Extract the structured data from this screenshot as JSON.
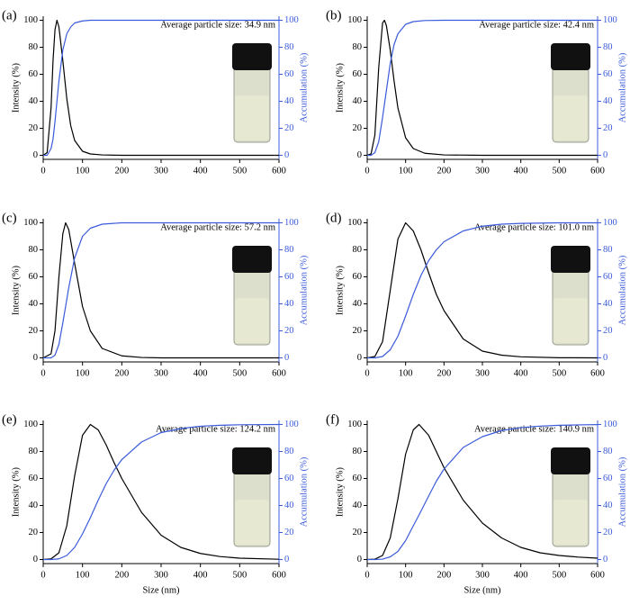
{
  "chart_data": [
    {
      "type": "line",
      "label": "(a)",
      "annotation": "Average particle size: 34.9 nm",
      "ylabel": "Intensity (%)",
      "y2label": "Accumulation (%)",
      "x": [
        0,
        10,
        20,
        25,
        30,
        35,
        40,
        50,
        60,
        70,
        80,
        100,
        120,
        150,
        200,
        300,
        400,
        500,
        600
      ],
      "series": [
        {
          "color": "#000000",
          "values": [
            0,
            2,
            35,
            70,
            93,
            100,
            95,
            70,
            42,
            22,
            11,
            3,
            1,
            0.3,
            0,
            0,
            0,
            0,
            0
          ]
        },
        {
          "color": "#3b5bdb",
          "axis": "y2",
          "values": [
            0,
            0,
            5,
            12,
            25,
            40,
            55,
            78,
            90,
            95,
            98,
            99.5,
            100,
            100,
            100,
            100,
            100,
            100,
            100
          ]
        }
      ],
      "xlim": [
        0,
        600
      ],
      "xticks": [
        0,
        100,
        200,
        300,
        400,
        500,
        600
      ],
      "ylim": [
        -3,
        103
      ],
      "yticks": [
        0,
        20,
        40,
        60,
        80,
        100
      ],
      "y2lim": [
        -3,
        103
      ],
      "y2ticks": [
        0,
        20,
        40,
        60,
        80,
        100
      ]
    },
    {
      "type": "line",
      "label": "(b)",
      "annotation": "Average particle size: 42.4 nm",
      "ylabel": "Intensity (%)",
      "y2label": "Accumulation (%)",
      "x": [
        0,
        10,
        20,
        30,
        40,
        45,
        50,
        60,
        70,
        80,
        100,
        120,
        150,
        200,
        300,
        400,
        500,
        600
      ],
      "series": [
        {
          "color": "#000000",
          "values": [
            0,
            1,
            15,
            65,
            98,
            100,
            96,
            78,
            55,
            35,
            13,
            5,
            1.5,
            0.3,
            0,
            0,
            0,
            0
          ]
        },
        {
          "color": "#3b5bdb",
          "axis": "y2",
          "values": [
            0,
            0,
            2,
            10,
            28,
            38,
            48,
            68,
            82,
            90,
            97,
            99,
            99.8,
            100,
            100,
            100,
            100,
            100
          ]
        }
      ],
      "xlim": [
        0,
        600
      ],
      "xticks": [
        0,
        100,
        200,
        300,
        400,
        500,
        600
      ],
      "ylim": [
        -3,
        103
      ],
      "yticks": [
        0,
        20,
        40,
        60,
        80,
        100
      ],
      "y2lim": [
        -3,
        103
      ],
      "y2ticks": [
        0,
        20,
        40,
        60,
        80,
        100
      ]
    },
    {
      "type": "line",
      "label": "(c)",
      "annotation": "Average particle size: 57.2 nm",
      "ylabel": "Intensity (%)",
      "y2label": "Accumulation (%)",
      "x": [
        0,
        20,
        30,
        40,
        50,
        57,
        65,
        80,
        100,
        120,
        150,
        200,
        250,
        300,
        400,
        500,
        600
      ],
      "series": [
        {
          "color": "#000000",
          "values": [
            0,
            3,
            20,
            60,
            92,
            100,
            95,
            70,
            38,
            20,
            7,
            1.5,
            0.3,
            0,
            0,
            0,
            0
          ]
        },
        {
          "color": "#3b5bdb",
          "axis": "y2",
          "values": [
            0,
            0,
            2,
            10,
            26,
            38,
            52,
            74,
            90,
            96,
            99,
            100,
            100,
            100,
            100,
            100,
            100
          ]
        }
      ],
      "xlim": [
        0,
        600
      ],
      "xticks": [
        0,
        100,
        200,
        300,
        400,
        500,
        600
      ],
      "ylim": [
        -3,
        103
      ],
      "yticks": [
        0,
        20,
        40,
        60,
        80,
        100
      ],
      "y2lim": [
        -3,
        103
      ],
      "y2ticks": [
        0,
        20,
        40,
        60,
        80,
        100
      ]
    },
    {
      "type": "line",
      "label": "(d)",
      "annotation": "Average particle size: 101.0 nm",
      "ylabel": "Intensity (%)",
      "y2label": "Accumulation (%)",
      "x": [
        0,
        20,
        40,
        60,
        80,
        100,
        120,
        140,
        160,
        180,
        200,
        250,
        300,
        350,
        400,
        500,
        600
      ],
      "series": [
        {
          "color": "#000000",
          "values": [
            0,
            1,
            12,
            50,
            88,
            100,
            94,
            80,
            63,
            47,
            35,
            14,
            5,
            2,
            0.8,
            0.1,
            0
          ]
        },
        {
          "color": "#3b5bdb",
          "axis": "y2",
          "values": [
            0,
            0,
            1,
            6,
            16,
            31,
            47,
            61,
            72,
            80,
            86,
            94,
            97.5,
            99,
            99.6,
            100,
            100
          ]
        }
      ],
      "xlim": [
        0,
        600
      ],
      "xticks": [
        0,
        100,
        200,
        300,
        400,
        500,
        600
      ],
      "ylim": [
        -3,
        103
      ],
      "yticks": [
        0,
        20,
        40,
        60,
        80,
        100
      ],
      "y2lim": [
        -3,
        103
      ],
      "y2ticks": [
        0,
        20,
        40,
        60,
        80,
        100
      ]
    },
    {
      "type": "line",
      "label": "(e)",
      "annotation": "Average particle size: 124.2 nm",
      "ylabel": "Intensity (%)",
      "y2label": "Accumulation (%)",
      "xlabel": "Size (nm)",
      "x": [
        0,
        20,
        40,
        60,
        80,
        100,
        120,
        140,
        160,
        180,
        200,
        250,
        300,
        350,
        400,
        450,
        500,
        600
      ],
      "series": [
        {
          "color": "#000000",
          "values": [
            0,
            0.5,
            5,
            25,
            62,
            92,
            100,
            96,
            85,
            72,
            60,
            35,
            18,
            9,
            4.5,
            2.2,
            1,
            0.2
          ]
        },
        {
          "color": "#3b5bdb",
          "axis": "y2",
          "values": [
            0,
            0,
            0.5,
            3,
            9,
            19,
            31,
            44,
            56,
            66,
            74,
            87,
            94,
            97,
            98.7,
            99.4,
            99.8,
            100
          ]
        }
      ],
      "xlim": [
        0,
        600
      ],
      "xticks": [
        0,
        100,
        200,
        300,
        400,
        500,
        600
      ],
      "ylim": [
        -3,
        103
      ],
      "yticks": [
        0,
        20,
        40,
        60,
        80,
        100
      ],
      "y2lim": [
        -3,
        103
      ],
      "y2ticks": [
        0,
        20,
        40,
        60,
        80,
        100
      ]
    },
    {
      "type": "line",
      "label": "(f)",
      "annotation": "Average particle size: 140.9 nm",
      "ylabel": "Intensity (%)",
      "y2label": "Accumulation (%)",
      "xlabel": "Size (nm)",
      "x": [
        0,
        20,
        40,
        60,
        80,
        100,
        120,
        135,
        160,
        180,
        200,
        250,
        300,
        350,
        400,
        450,
        500,
        550,
        600
      ],
      "series": [
        {
          "color": "#000000",
          "values": [
            0,
            0.3,
            3,
            16,
            45,
            78,
            96,
            100,
            92,
            80,
            68,
            44,
            27,
            16,
            9,
            5,
            3,
            1.8,
            1
          ]
        },
        {
          "color": "#3b5bdb",
          "axis": "y2",
          "values": [
            0,
            0,
            0.3,
            2,
            6,
            14,
            25,
            33,
            47,
            58,
            67,
            83,
            91,
            95.5,
            97.7,
            98.8,
            99.4,
            99.7,
            99.9
          ]
        }
      ],
      "xlim": [
        0,
        600
      ],
      "xticks": [
        0,
        100,
        200,
        300,
        400,
        500,
        600
      ],
      "ylim": [
        -3,
        103
      ],
      "yticks": [
        0,
        20,
        40,
        60,
        80,
        100
      ],
      "y2lim": [
        -3,
        103
      ],
      "y2ticks": [
        0,
        20,
        40,
        60,
        80,
        100
      ]
    }
  ]
}
